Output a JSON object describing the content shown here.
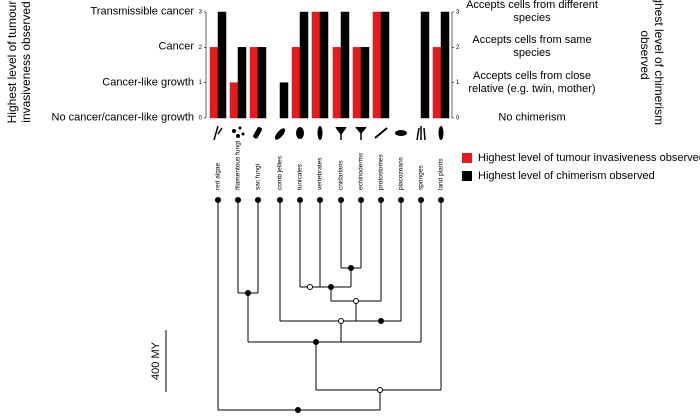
{
  "chart_data": {
    "type": "bar",
    "categories": [
      "red algae",
      "filamentous fungi",
      "sac fungi",
      "comb jellies",
      "tunicates",
      "vertebrates",
      "cnidarians",
      "echinoderms",
      "protostomes",
      "placozoans",
      "sponges",
      "land plants"
    ],
    "series": [
      {
        "name": "Highest level of tumour invasiveness observed",
        "color": "#e41a1c",
        "values": [
          2,
          1,
          2,
          0,
          2,
          3,
          2,
          2,
          3,
          0,
          0,
          2
        ]
      },
      {
        "name": "Highest level of chimerism observed",
        "color": "#000000",
        "axis": "y2",
        "values": [
          3,
          2,
          2,
          1,
          3,
          3,
          3,
          2,
          3,
          0,
          3,
          3
        ]
      }
    ],
    "ylabel": "Highest level of tumour invasiveness observed",
    "y2label": "Highest level of chimerism observed",
    "ylim": [
      0,
      3
    ],
    "yticks": [
      0,
      1,
      2,
      3
    ],
    "y2lim": [
      0,
      3
    ],
    "y2ticks": [
      0,
      1,
      2,
      3
    ],
    "y_level_labels": [
      "No cancer/cancer-like growth",
      "Cancer-like growth",
      "Cancer",
      "Transmissible cancer"
    ],
    "y2_level_labels": [
      "No chimerism",
      "Accepts cells from close relative (e.g. twin, mother)",
      "Accepts cells from same species",
      "Accepts cells from different species"
    ],
    "scale_bar_label": "400 MY"
  }
}
